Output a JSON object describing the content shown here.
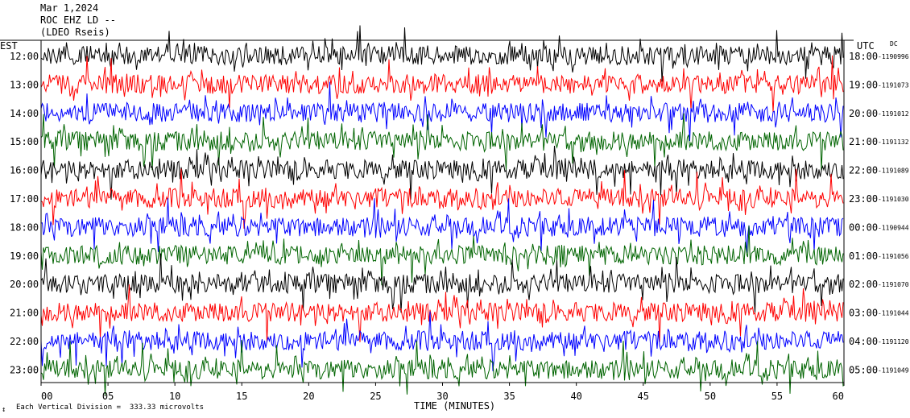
{
  "header": {
    "date": "Mar 1,2024",
    "station": "ROC EHZ LD --",
    "source": "(LDEO Rseis)"
  },
  "left_zone": "EST",
  "right_zone": "UTC",
  "dc_label": "DC",
  "footer": {
    "scale_marker": "↕",
    "scale_text": "Each Vertical Division =  333.33 microvolts"
  },
  "chart_data": {
    "type": "line",
    "xlabel": "TIME (MINUTES)",
    "x_ticks": [
      "00",
      "05",
      "10",
      "15",
      "20",
      "25",
      "30",
      "35",
      "40",
      "45",
      "50",
      "55",
      "60"
    ],
    "xlim": [
      0,
      60
    ],
    "trace_colors": [
      "#000000",
      "#ff0000",
      "#0000ff",
      "#006400"
    ],
    "rows": [
      {
        "est": "12:00",
        "utc": "18:00",
        "dc": "-1190996"
      },
      {
        "est": "13:00",
        "utc": "19:00",
        "dc": "-1191073"
      },
      {
        "est": "14:00",
        "utc": "20:00",
        "dc": "-1191012"
      },
      {
        "est": "15:00",
        "utc": "21:00",
        "dc": "-1191132"
      },
      {
        "est": "16:00",
        "utc": "22:00",
        "dc": "-1191089"
      },
      {
        "est": "17:00",
        "utc": "23:00",
        "dc": "-1191030"
      },
      {
        "est": "18:00",
        "utc": "00:00",
        "dc": "-1190944"
      },
      {
        "est": "19:00",
        "utc": "01:00",
        "dc": "-1191056"
      },
      {
        "est": "20:00",
        "utc": "02:00",
        "dc": "-1191070"
      },
      {
        "est": "21:00",
        "utc": "03:00",
        "dc": "-1191044"
      },
      {
        "est": "22:00",
        "utc": "04:00",
        "dc": "-1191120"
      },
      {
        "est": "23:00",
        "utc": "05:00",
        "dc": "-1191049"
      }
    ]
  }
}
